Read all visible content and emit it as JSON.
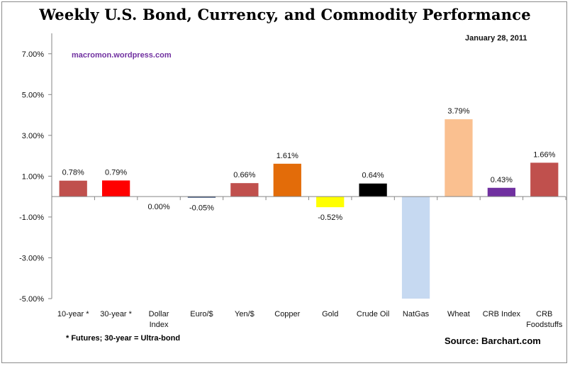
{
  "chart_data": {
    "type": "bar",
    "title": "Weekly U.S. Bond, Currency, and Commodity Performance",
    "date": "January 28, 2011",
    "watermark": "macromon.wordpress.com",
    "footnote": "* Futures; 30-year = Ultra-bond",
    "source": "Source:  Barchart.com",
    "xlabel": "",
    "ylabel": "",
    "ylim": [
      -5,
      8
    ],
    "yticks": [
      -5,
      -3,
      -1,
      1,
      3,
      5,
      7
    ],
    "ytick_labels": [
      "-5.00%",
      "-3.00%",
      "-1.00%",
      "1.00%",
      "3.00%",
      "5.00%",
      "7.00%"
    ],
    "grid": false,
    "legend": "none",
    "categories": [
      [
        "10-year *"
      ],
      [
        "30-year *"
      ],
      [
        "Dollar",
        "Index"
      ],
      [
        "Euro/$"
      ],
      [
        "Yen/$"
      ],
      [
        "Copper"
      ],
      [
        "Gold"
      ],
      [
        "Crude Oil"
      ],
      [
        "NatGas"
      ],
      [
        "Wheat"
      ],
      [
        "CRB Index"
      ],
      [
        "CRB",
        "Foodstuffs"
      ]
    ],
    "values": [
      0.78,
      0.79,
      0.0,
      -0.05,
      0.66,
      1.61,
      -0.52,
      0.64,
      -5.0,
      3.79,
      0.43,
      1.66
    ],
    "data_labels": [
      "0.78%",
      "0.79%",
      "0.00%",
      "-0.05%",
      "0.66%",
      "1.61%",
      "-0.52%",
      "0.64%",
      "",
      "3.79%",
      "0.43%",
      "1.66%"
    ],
    "colors": [
      "#c0504d",
      "#ff0000",
      "#4f6228",
      "#1f3864",
      "#c0504d",
      "#e36c09",
      "#ffff00",
      "#000000",
      "#c6d9f1",
      "#fac090",
      "#7030a0",
      "#c0504d"
    ],
    "notes": "NatGas bar extends below the -5.00% axis minimum (clipped, unlabeled)"
  }
}
